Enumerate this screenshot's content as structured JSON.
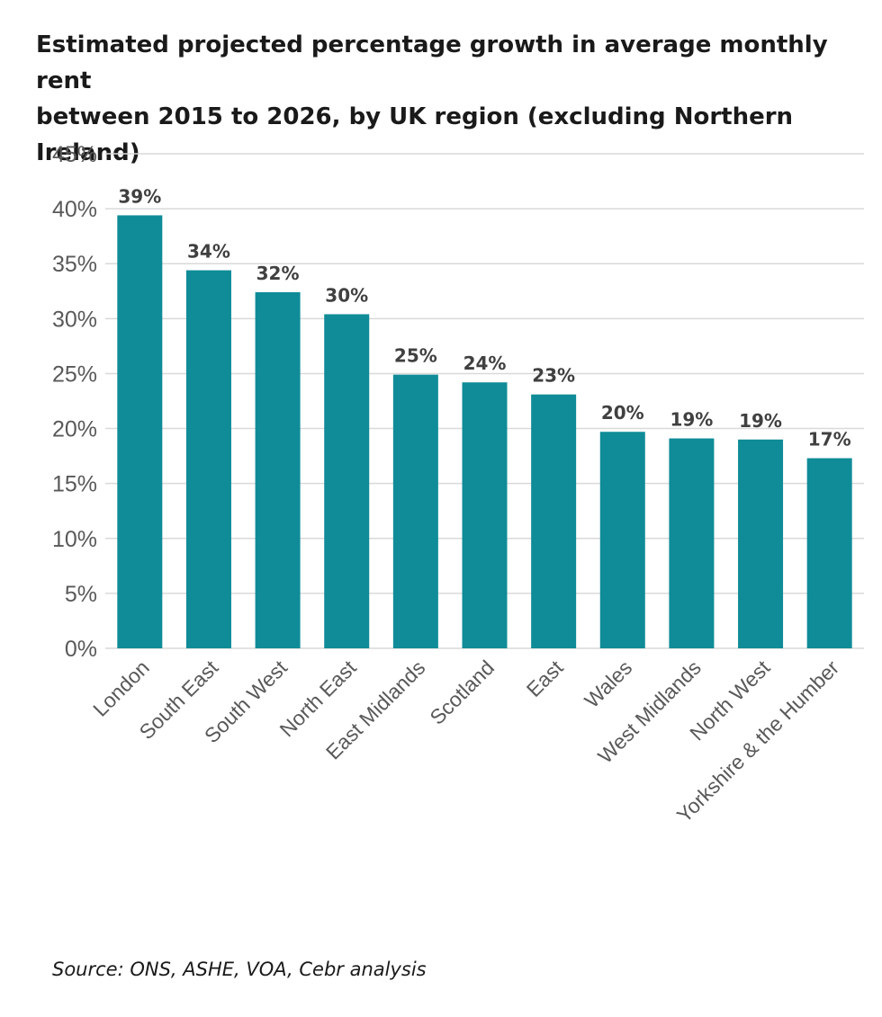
{
  "title_lines": [
    "Estimated projected percentage growth in average monthly rent",
    "between 2015 to 2026, by UK region (excluding Northern Ireland)"
  ],
  "source": "Source: ONS, ASHE, VOA, Cebr analysis",
  "colors": {
    "bar": "#0f8c97",
    "grid": "#d9d9d9",
    "tick_label": "#595959",
    "data_label": "#404040"
  },
  "chart_data": {
    "type": "bar",
    "title": "Estimated projected percentage growth in average monthly rent between 2015 to 2026, by UK region (excluding Northern Ireland)",
    "categories": [
      "London",
      "South East",
      "South West",
      "North East",
      "East Midlands",
      "Scotland",
      "East",
      "Wales",
      "West Midlands",
      "North West",
      "Yorkshire & the Humber"
    ],
    "values": [
      39.4,
      34.4,
      32.4,
      30.4,
      24.9,
      24.2,
      23.1,
      19.7,
      19.1,
      19.0,
      17.3
    ],
    "data_labels": [
      "39%",
      "34%",
      "32%",
      "30%",
      "25%",
      "24%",
      "23%",
      "20%",
      "19%",
      "19%",
      "17%"
    ],
    "y_ticks": [
      0,
      5,
      10,
      15,
      20,
      25,
      30,
      35,
      40,
      45
    ],
    "y_tick_labels": [
      "0%",
      "5%",
      "10%",
      "15%",
      "20%",
      "25%",
      "30%",
      "35%",
      "40%",
      "45%"
    ],
    "ylim": [
      0,
      45
    ],
    "xlabel": "",
    "ylabel": "",
    "grid": true,
    "legend": "none"
  }
}
